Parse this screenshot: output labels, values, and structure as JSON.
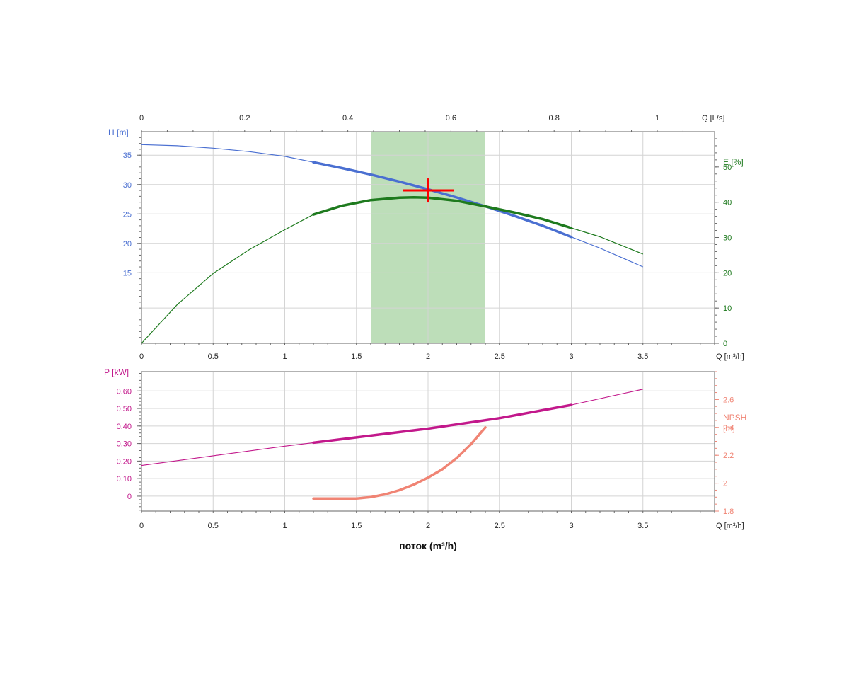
{
  "chart_data": [
    {
      "type": "line",
      "panel": "head-efficiency",
      "x_axis": {
        "label": "Q [m³/h]",
        "range": [
          0,
          4
        ],
        "ticks": [
          0,
          0.5,
          1,
          1.5,
          2,
          2.5,
          3,
          3.5
        ]
      },
      "x_top_axis": {
        "label": "Q [L/s]",
        "ticks": [
          0,
          0.2,
          0.4,
          0.6,
          0.8,
          1
        ]
      },
      "y_axis_left": {
        "label": "H [m]",
        "range": [
          3,
          39
        ],
        "ticks": [
          15,
          20,
          25,
          30,
          35
        ]
      },
      "y_axis_right": {
        "label": "E [%]",
        "range": [
          0,
          60
        ],
        "ticks": [
          0,
          10,
          20,
          30,
          40,
          50
        ]
      },
      "grid": true,
      "shaded_band": {
        "x_from": 1.6,
        "x_to": 2.4,
        "color": "#b9dcb5"
      },
      "duty_point": {
        "x": 2.0,
        "y": 29,
        "marker": "red-cross",
        "color": "#ff0000"
      },
      "series": [
        {
          "axis": "left",
          "color": "#4a6fd1",
          "bold_range": [
            1.2,
            3.0
          ],
          "x": [
            0,
            0.25,
            0.5,
            0.75,
            1.0,
            1.2,
            1.4,
            1.6,
            1.8,
            2.0,
            2.2,
            2.4,
            2.6,
            2.8,
            3.0,
            3.2,
            3.5
          ],
          "y": [
            36.8,
            36.6,
            36.2,
            35.6,
            34.8,
            33.8,
            32.8,
            31.7,
            30.5,
            29.2,
            27.8,
            26.3,
            24.7,
            23.0,
            21.1,
            19.2,
            16.0
          ]
        },
        {
          "axis": "right",
          "color": "#1e7a1e",
          "bold_range": [
            1.2,
            3.0
          ],
          "x": [
            0,
            0.25,
            0.5,
            0.75,
            1.0,
            1.2,
            1.4,
            1.6,
            1.8,
            1.9,
            2.0,
            2.2,
            2.4,
            2.6,
            2.8,
            3.0,
            3.2,
            3.5
          ],
          "y": [
            0,
            11,
            19.8,
            26.5,
            32.2,
            36.5,
            39.0,
            40.6,
            41.3,
            41.4,
            41.3,
            40.4,
            38.8,
            37.1,
            35.2,
            32.7,
            30.2,
            25.3
          ]
        }
      ]
    },
    {
      "type": "line",
      "panel": "power-npsh",
      "x_axis": {
        "label": "Q [m³/h]",
        "range": [
          0,
          4
        ],
        "ticks": [
          0,
          0.5,
          1,
          1.5,
          2,
          2.5,
          3,
          3.5
        ]
      },
      "y_axis_left": {
        "label": "P [kW]",
        "range": [
          -0.085,
          0.71
        ],
        "ticks": [
          0,
          0.1,
          0.2,
          0.3,
          0.4,
          0.5,
          0.6
        ],
        "tick_labels": [
          "0",
          "0.10",
          "0.20",
          "0.30",
          "0.40",
          "0.50",
          "0.60"
        ]
      },
      "y_axis_right": {
        "label_line1": "NPSH",
        "label_line2": "[m]",
        "range": [
          1.8,
          2.8
        ],
        "ticks": [
          1.8,
          2,
          2.2,
          2.4,
          2.6
        ]
      },
      "grid": true,
      "xlabel": "поток (m³/h)",
      "series": [
        {
          "axis": "left",
          "color": "#c2188b",
          "bold_range": [
            1.2,
            3.0
          ],
          "x": [
            0,
            0.5,
            1.0,
            1.2,
            1.5,
            2.0,
            2.5,
            3.0,
            3.5
          ],
          "y": [
            0.175,
            0.23,
            0.285,
            0.305,
            0.335,
            0.385,
            0.445,
            0.52,
            0.61
          ]
        },
        {
          "axis": "right",
          "color": "#f08474",
          "bold_range": [
            1.2,
            2.4
          ],
          "x": [
            1.2,
            1.4,
            1.5,
            1.6,
            1.7,
            1.8,
            1.9,
            2.0,
            2.1,
            2.2,
            2.3,
            2.4
          ],
          "y": [
            1.89,
            1.89,
            1.89,
            1.9,
            1.92,
            1.95,
            1.99,
            2.04,
            2.1,
            2.18,
            2.28,
            2.4
          ]
        }
      ]
    }
  ]
}
